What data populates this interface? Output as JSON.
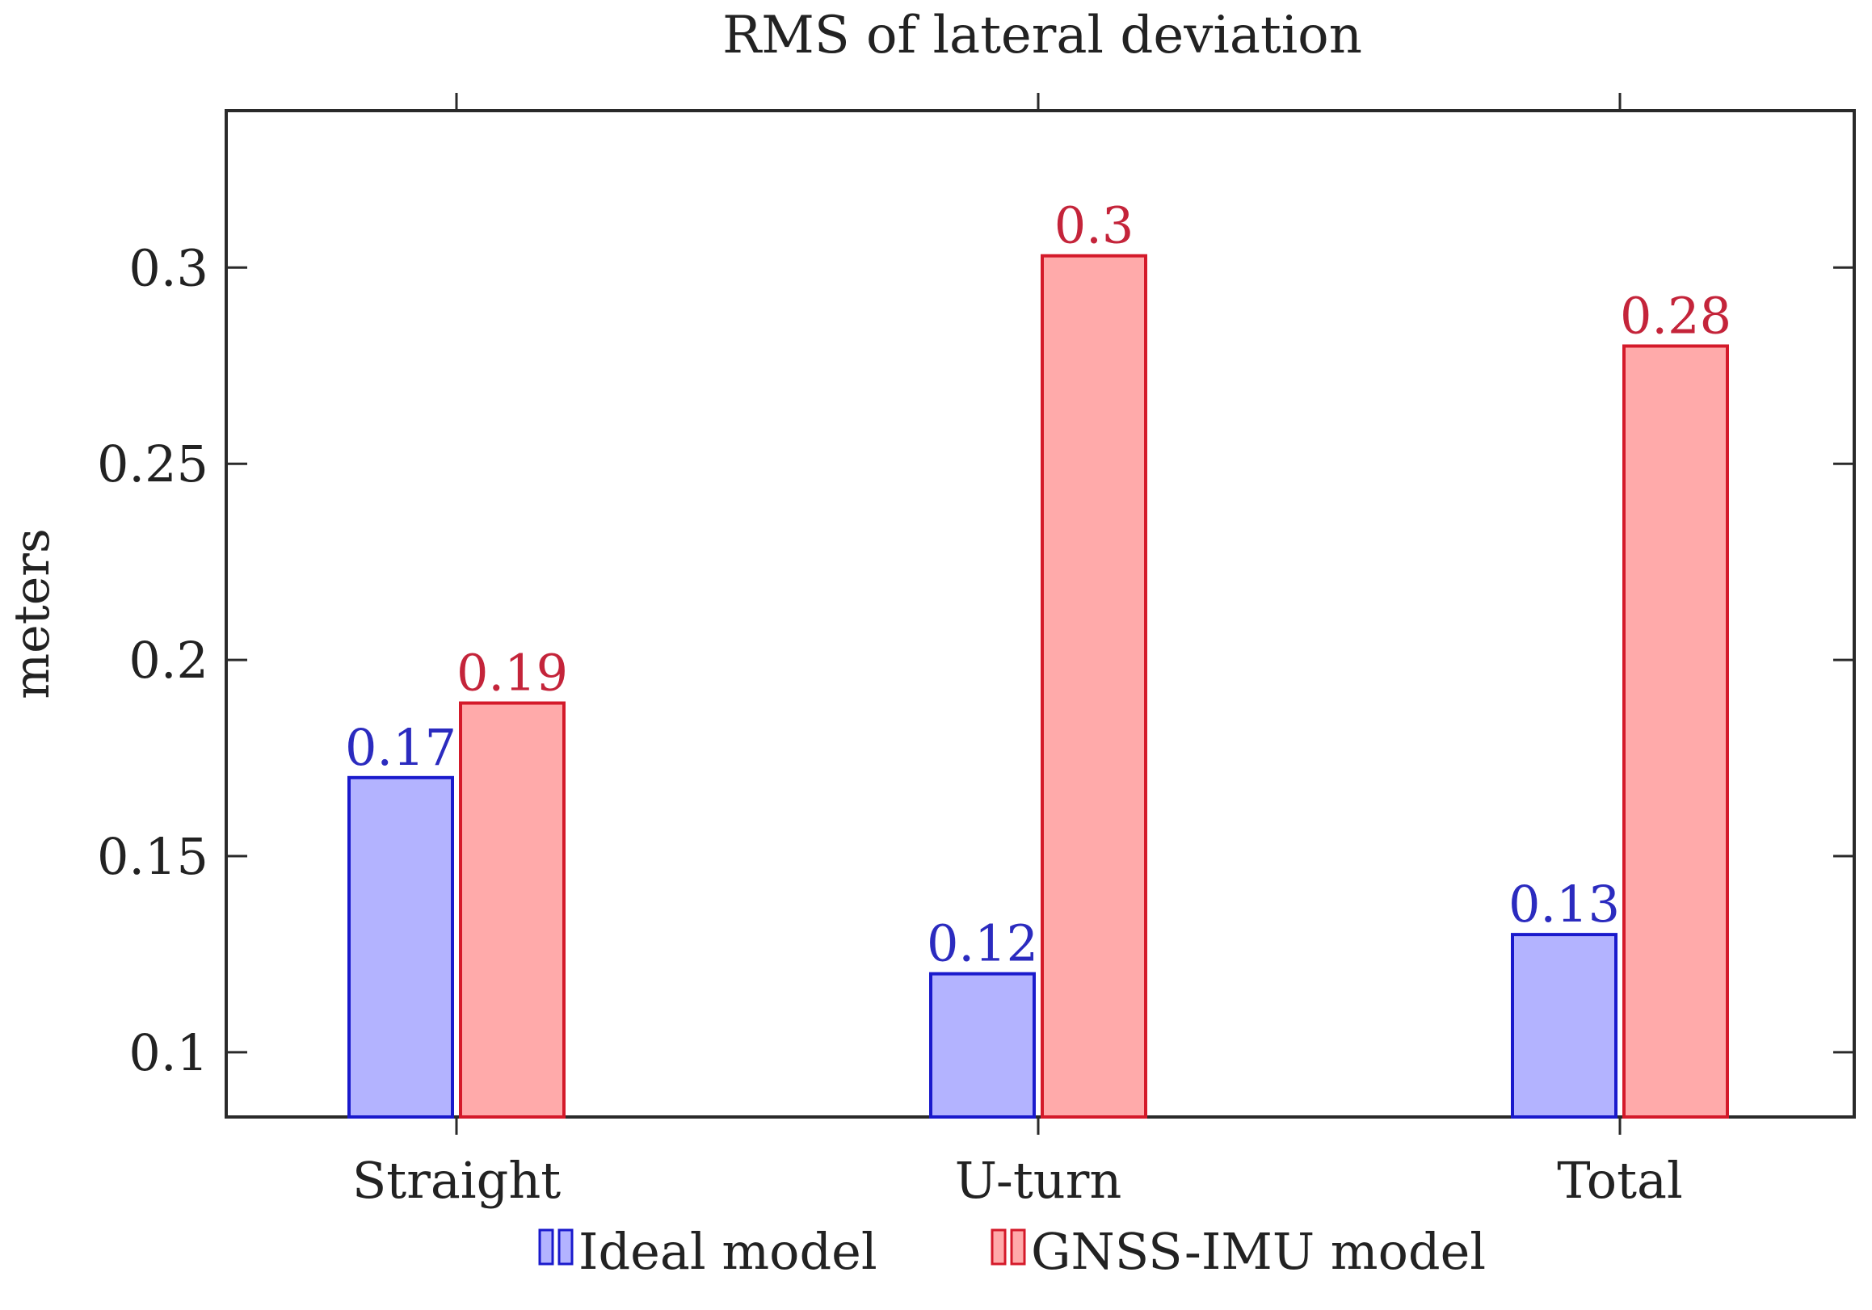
{
  "chart_data": {
    "type": "bar",
    "title": "RMS of lateral deviation",
    "xlabel": "",
    "ylabel": "meters",
    "categories": [
      "Straight",
      "U-turn",
      "Total"
    ],
    "series": [
      {
        "name": "Ideal model",
        "values": [
          0.17,
          0.12,
          0.13
        ],
        "labels": [
          "0.17",
          "0.12",
          "0.13"
        ],
        "fill": "#b3b3ff",
        "stroke": "#1a1acc",
        "label_color": "#2b2bbf"
      },
      {
        "name": "GNSS-IMU model",
        "values": [
          0.189,
          0.303,
          0.28
        ],
        "labels": [
          "0.19",
          "0.3",
          "0.28"
        ],
        "fill": "#ffaaaa",
        "stroke": "#d41a2a",
        "label_color": "#c4243a"
      }
    ],
    "ylim": [
      0.0835,
      0.34
    ],
    "yticks": [
      0.1,
      0.15,
      0.2,
      0.25,
      0.3
    ],
    "ytick_labels": [
      "0.1",
      "0.15",
      "0.2",
      "0.25",
      "0.3"
    ],
    "grid": false,
    "legend_position": "bottom-center"
  }
}
